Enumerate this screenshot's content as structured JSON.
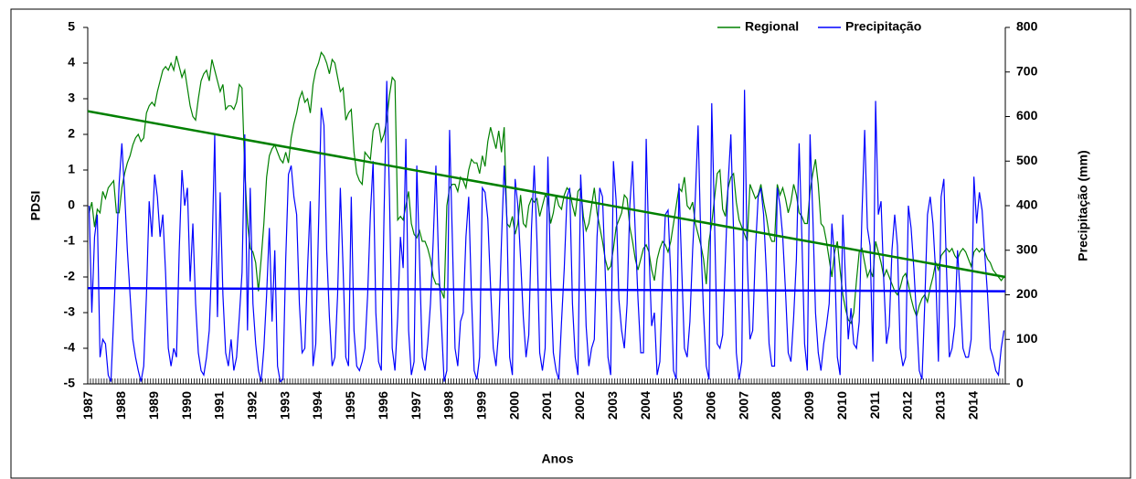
{
  "chart_data": {
    "type": "line",
    "xlabel": "Anos",
    "ylabel": "PDSI",
    "y2label": "Precipitação (mm)",
    "ylim": [
      -5,
      5
    ],
    "yticks": [
      -5,
      -4,
      -3,
      -2,
      -1,
      0,
      1,
      2,
      3,
      4,
      5
    ],
    "y2lim": [
      0,
      800
    ],
    "y2ticks": [
      0,
      100,
      200,
      300,
      400,
      500,
      600,
      700,
      800
    ],
    "legend": "top-right",
    "grid": false,
    "categories": [
      "1987",
      null,
      null,
      null,
      null,
      null,
      null,
      null,
      null,
      null,
      null,
      null,
      "1988",
      null,
      null,
      null,
      null,
      null,
      null,
      null,
      null,
      null,
      null,
      null,
      "1989",
      null,
      null,
      null,
      null,
      null,
      null,
      null,
      null,
      null,
      null,
      null,
      "1990",
      null,
      null,
      null,
      null,
      null,
      null,
      null,
      null,
      null,
      null,
      null,
      "1991",
      null,
      null,
      null,
      null,
      null,
      null,
      null,
      null,
      null,
      null,
      null,
      "1992",
      null,
      null,
      null,
      null,
      null,
      null,
      null,
      null,
      null,
      null,
      null,
      "1993",
      null,
      null,
      null,
      null,
      null,
      null,
      null,
      null,
      null,
      null,
      null,
      "1994",
      null,
      null,
      null,
      null,
      null,
      null,
      null,
      null,
      null,
      null,
      null,
      "1995",
      null,
      null,
      null,
      null,
      null,
      null,
      null,
      null,
      null,
      null,
      null,
      "1996",
      null,
      null,
      null,
      null,
      null,
      null,
      null,
      null,
      null,
      null,
      null,
      "1997",
      null,
      null,
      null,
      null,
      null,
      null,
      null,
      null,
      null,
      null,
      null,
      "1998",
      null,
      null,
      null,
      null,
      null,
      null,
      null,
      null,
      null,
      null,
      null,
      "1999",
      null,
      null,
      null,
      null,
      null,
      null,
      null,
      null,
      null,
      null,
      null,
      "2000",
      null,
      null,
      null,
      null,
      null,
      null,
      null,
      null,
      null,
      null,
      null,
      "2001",
      null,
      null,
      null,
      null,
      null,
      null,
      null,
      null,
      null,
      null,
      null,
      "2002",
      null,
      null,
      null,
      null,
      null,
      null,
      null,
      null,
      null,
      null,
      null,
      "2003",
      null,
      null,
      null,
      null,
      null,
      null,
      null,
      null,
      null,
      null,
      null,
      "2004",
      null,
      null,
      null,
      null,
      null,
      null,
      null,
      null,
      null,
      null,
      null,
      "2005",
      null,
      null,
      null,
      null,
      null,
      null,
      null,
      null,
      null,
      null,
      null,
      "2006",
      null,
      null,
      null,
      null,
      null,
      null,
      null,
      null,
      null,
      null,
      null,
      "2007",
      null,
      null,
      null,
      null,
      null,
      null,
      null,
      null,
      null,
      null,
      null,
      "2008",
      null,
      null,
      null,
      null,
      null,
      null,
      null,
      null,
      null,
      null,
      null,
      "2009",
      null,
      null,
      null,
      null,
      null,
      null,
      null,
      null,
      null,
      null,
      null,
      "2010",
      null,
      null,
      null,
      null,
      null,
      null,
      null,
      null,
      null,
      null,
      null,
      "2011",
      null,
      null,
      null,
      null,
      null,
      null,
      null,
      null,
      null,
      null,
      null,
      "2012",
      null,
      null,
      null,
      null,
      null,
      null,
      null,
      null,
      null,
      null,
      null,
      "2013",
      null,
      null,
      null,
      null,
      null,
      null,
      null,
      null,
      null,
      null,
      null,
      "2014",
      null,
      null,
      null,
      null,
      null,
      null,
      null,
      null,
      null,
      null,
      null
    ],
    "series": [
      {
        "name": "Regional",
        "color": "#008000",
        "axis": "y",
        "values": [
          -0.2,
          0.1,
          -0.6,
          -0.1,
          -0.2,
          0.4,
          0.2,
          0.5,
          0.6,
          0.7,
          -0.2,
          -0.2,
          0.5,
          0.9,
          1.2,
          1.4,
          1.7,
          1.9,
          2.0,
          1.8,
          1.9,
          2.6,
          2.8,
          2.9,
          2.8,
          3.2,
          3.5,
          3.8,
          3.9,
          3.8,
          4.0,
          3.8,
          4.2,
          3.9,
          3.6,
          3.8,
          3.3,
          2.8,
          2.5,
          2.4,
          3.0,
          3.5,
          3.7,
          3.8,
          3.5,
          4.1,
          3.8,
          3.5,
          3.2,
          3.4,
          2.7,
          2.8,
          2.8,
          2.7,
          2.9,
          3.4,
          3.3,
          1.0,
          -0.5,
          -1.2,
          -1.3,
          -1.6,
          -2.4,
          -1.5,
          -0.5,
          0.8,
          1.4,
          1.6,
          1.7,
          1.5,
          1.3,
          1.2,
          1.5,
          1.2,
          1.9,
          2.3,
          2.6,
          3.0,
          3.2,
          2.9,
          3.0,
          2.6,
          3.4,
          3.8,
          4.0,
          4.3,
          4.2,
          4.0,
          3.7,
          4.1,
          4.0,
          3.6,
          3.2,
          3.3,
          2.4,
          2.6,
          2.7,
          1.5,
          0.9,
          0.7,
          0.6,
          1.5,
          1.4,
          1.3,
          2.1,
          2.3,
          2.3,
          1.8,
          2.0,
          2.4,
          3.1,
          3.6,
          3.5,
          -0.4,
          -0.3,
          -0.4,
          0.0,
          0.4,
          -0.5,
          -0.8,
          -0.9,
          -0.7,
          -1.0,
          -1.0,
          -1.2,
          -1.5,
          -2.0,
          -2.2,
          -2.2,
          -2.4,
          -2.6,
          0.0,
          0.5,
          0.6,
          0.6,
          0.4,
          0.8,
          0.7,
          0.5,
          1.0,
          1.3,
          1.2,
          1.2,
          0.9,
          1.4,
          1.1,
          1.8,
          2.2,
          1.9,
          1.6,
          2.1,
          1.5,
          2.2,
          -0.5,
          -0.6,
          -0.3,
          -0.8,
          -0.5,
          0.3,
          -0.5,
          -0.6,
          0.0,
          0.2,
          0.1,
          0.2,
          -0.3,
          0.0,
          0.3,
          0.2,
          -0.5,
          -0.2,
          0.3,
          0.0,
          -0.1,
          0.3,
          0.5,
          0.4,
          0.0,
          -0.3,
          0.4,
          0.5,
          -0.3,
          -0.7,
          -0.5,
          0.0,
          0.5,
          -0.2,
          -0.6,
          -1.0,
          -1.5,
          -1.8,
          -1.7,
          -1.2,
          -0.6,
          -0.4,
          -0.2,
          0.3,
          0.2,
          -0.6,
          -1.0,
          -1.5,
          -1.8,
          -1.5,
          -1.2,
          -1.1,
          -1.3,
          -1.8,
          -2.1,
          -1.5,
          -1.2,
          -1.0,
          -1.1,
          -1.3,
          -1.0,
          -0.5,
          0.0,
          0.5,
          0.4,
          0.8,
          0.0,
          -0.1,
          0.1,
          -0.5,
          -0.8,
          -1.1,
          -1.5,
          -2.2,
          -1.0,
          -0.5,
          0.2,
          0.9,
          1.0,
          -0.1,
          -0.3,
          0.5,
          0.8,
          0.9,
          0.1,
          -0.4,
          -0.6,
          -0.8,
          -1.0,
          0.6,
          0.4,
          0.2,
          0.3,
          0.6,
          0.1,
          -0.3,
          -0.8,
          -1.0,
          -1.0,
          0.6,
          0.3,
          0.5,
          0.2,
          -0.2,
          0.1,
          0.6,
          0.3,
          -0.2,
          -0.3,
          -0.5,
          -0.5,
          0.4,
          0.9,
          1.3,
          0.6,
          -0.5,
          -0.6,
          -1.0,
          -1.5,
          -2.0,
          -1.3,
          -1.0,
          -1.8,
          -2.5,
          -2.9,
          -3.2,
          -3.3,
          -3.0,
          -2.1,
          -1.3,
          -1.2,
          -1.6,
          -2.0,
          -1.8,
          -2.0,
          -1.0,
          -1.3,
          -1.6,
          -2.0,
          -1.8,
          -2.0,
          -2.2,
          -2.4,
          -2.5,
          -2.3,
          -2.0,
          -1.9,
          -2.2,
          -2.6,
          -2.9,
          -3.1,
          -2.8,
          -2.6,
          -2.5,
          -2.7,
          -2.3,
          -2.0,
          -1.6,
          -1.8,
          -1.4,
          -1.3,
          -1.2,
          -1.3,
          -1.2,
          -1.4,
          -1.5,
          -1.3,
          -1.2,
          -1.3,
          -1.5,
          -1.7,
          -1.3,
          -1.2,
          -1.3,
          -1.2,
          -1.3,
          -1.5,
          -1.6,
          -1.8,
          -1.9,
          -2.0,
          -2.1,
          -2.0
        ]
      },
      {
        "name": "Precipitação",
        "color": "#0000ff",
        "axis": "y2",
        "values": [
          400,
          160,
          330,
          380,
          60,
          100,
          90,
          20,
          5,
          150,
          300,
          450,
          540,
          430,
          300,
          200,
          100,
          60,
          30,
          5,
          40,
          200,
          410,
          330,
          470,
          420,
          330,
          380,
          250,
          80,
          40,
          80,
          60,
          300,
          480,
          400,
          440,
          230,
          360,
          180,
          70,
          30,
          20,
          60,
          120,
          290,
          560,
          150,
          430,
          200,
          70,
          40,
          100,
          30,
          60,
          150,
          250,
          560,
          120,
          440,
          180,
          90,
          30,
          5,
          80,
          200,
          350,
          140,
          300,
          40,
          5,
          10,
          280,
          470,
          490,
          420,
          380,
          180,
          70,
          80,
          260,
          410,
          40,
          90,
          350,
          620,
          580,
          300,
          150,
          40,
          60,
          200,
          440,
          260,
          60,
          40,
          420,
          120,
          40,
          30,
          50,
          80,
          200,
          380,
          500,
          160,
          50,
          30,
          380,
          680,
          420,
          80,
          30,
          150,
          330,
          260,
          550,
          120,
          20,
          50,
          490,
          280,
          60,
          30,
          90,
          180,
          320,
          490,
          270,
          140,
          5,
          30,
          570,
          330,
          80,
          40,
          140,
          160,
          330,
          420,
          200,
          30,
          10,
          60,
          440,
          430,
          370,
          220,
          80,
          40,
          120,
          320,
          490,
          370,
          60,
          20,
          460,
          400,
          280,
          150,
          60,
          110,
          350,
          490,
          320,
          70,
          30,
          80,
          510,
          240,
          70,
          30,
          10,
          140,
          260,
          420,
          440,
          180,
          60,
          20,
          470,
          340,
          130,
          40,
          80,
          100,
          330,
          440,
          420,
          250,
          60,
          20,
          500,
          410,
          190,
          120,
          80,
          180,
          400,
          500,
          340,
          190,
          70,
          70,
          550,
          300,
          130,
          160,
          20,
          50,
          230,
          380,
          390,
          240,
          30,
          10,
          450,
          260,
          80,
          60,
          140,
          300,
          420,
          580,
          320,
          160,
          40,
          10,
          630,
          370,
          90,
          80,
          110,
          280,
          450,
          560,
          340,
          70,
          10,
          50,
          660,
          280,
          100,
          120,
          300,
          420,
          440,
          380,
          250,
          90,
          40,
          40,
          440,
          400,
          330,
          210,
          70,
          50,
          150,
          280,
          540,
          330,
          90,
          30,
          560,
          380,
          160,
          70,
          30,
          90,
          130,
          180,
          360,
          280,
          60,
          20,
          380,
          230,
          100,
          170,
          90,
          80,
          140,
          380,
          570,
          350,
          310,
          50,
          635,
          380,
          410,
          230,
          90,
          130,
          300,
          380,
          310,
          80,
          40,
          60,
          400,
          350,
          260,
          150,
          30,
          10,
          180,
          380,
          420,
          360,
          250,
          50,
          420,
          460,
          250,
          60,
          80,
          130,
          300,
          200,
          80,
          60,
          60,
          100,
          465,
          360,
          430,
          390,
          290,
          200,
          80,
          60,
          30,
          20,
          80,
          120
        ]
      }
    ],
    "trendlines": [
      {
        "axis": "y",
        "color": "#008000",
        "values": [
          2.65,
          -2.0
        ]
      },
      {
        "axis": "y2",
        "color": "#0000ff",
        "values": [
          215,
          208
        ]
      }
    ]
  }
}
